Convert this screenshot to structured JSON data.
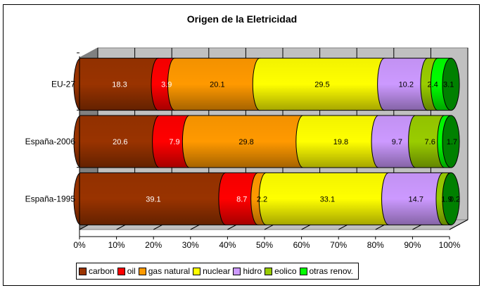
{
  "chart_data": {
    "type": "bar",
    "subtype": "stacked-100-horizontal-cylinder",
    "title": "Origen de la Eletricidad",
    "xlabel": "",
    "ylabel": "",
    "xlim": [
      0,
      100
    ],
    "x_ticks": [
      "0%",
      "10%",
      "20%",
      "30%",
      "40%",
      "50%",
      "60%",
      "70%",
      "80%",
      "90%",
      "100%"
    ],
    "categories": [
      "EU-27",
      "España-2006",
      "España-1995"
    ],
    "series": [
      {
        "name": "carbon",
        "color": "#993300",
        "label_color": "#ffffff",
        "values": [
          18.3,
          20.6,
          39.1
        ]
      },
      {
        "name": "oil",
        "color": "#ff0000",
        "label_color": "#ffffff",
        "values": [
          3.9,
          7.9,
          8.7
        ]
      },
      {
        "name": "gas natural",
        "color": "#ff9900",
        "label_color": "#000000",
        "values": [
          20.1,
          29.8,
          2.2
        ]
      },
      {
        "name": "nuclear",
        "color": "#ffff00",
        "label_color": "#000000",
        "values": [
          29.5,
          19.8,
          33.1
        ]
      },
      {
        "name": "hidro",
        "color": "#cc99ff",
        "label_color": "#000000",
        "values": [
          10.2,
          9.7,
          14.7
        ]
      },
      {
        "name": "eolico",
        "color": "#99cc00",
        "label_color": "#000000",
        "values": [
          2.4,
          7.6,
          1.9
        ]
      },
      {
        "name": "otras renov.",
        "color": "#00ff00",
        "label_color": "#000000",
        "values": [
          3.1,
          1.7,
          0.2
        ]
      }
    ],
    "legend_position": "bottom",
    "grid": true,
    "data_labels": true
  }
}
